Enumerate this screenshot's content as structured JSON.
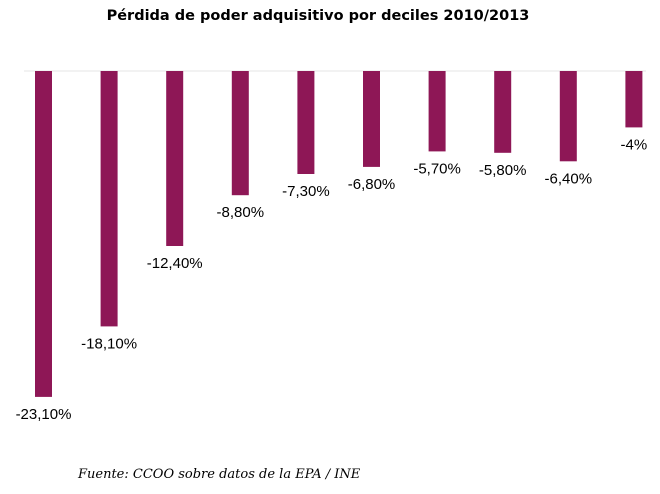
{
  "source": "Fuente: CCOO sobre datos de la EPA / INE",
  "chart_data": {
    "type": "bar",
    "title": "Pérdida de poder adquisitivo por deciles 2010/2013",
    "xlabel": "",
    "ylabel": "",
    "categories": [
      "",
      "",
      "",
      "",
      "",
      "",
      "",
      "",
      "",
      ""
    ],
    "values": [
      -23.1,
      -18.1,
      -12.4,
      -8.8,
      -7.3,
      -6.8,
      -5.7,
      -5.8,
      -6.4,
      -4
    ],
    "data_labels": [
      "-23,10%",
      "-18,10%",
      "-12,40%",
      "-8,80%",
      "-7,30%",
      "-6,80%",
      "-5,70%",
      "-5,80%",
      "-6,40%",
      "-4%"
    ],
    "ylim": [
      -25,
      0
    ],
    "bar_color": "#8e1756",
    "grid": false,
    "legend": "none"
  }
}
